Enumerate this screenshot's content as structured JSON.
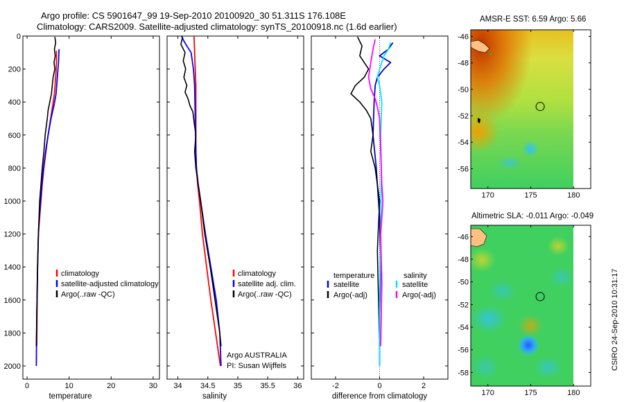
{
  "figure": {
    "title_line1": "Argo profile: CS 5901647_99 19-Sep-2010 20100920_30 51.311S 176.108E",
    "title_line2": "Climatology: CARS2009. Satellite-adjusted climatology: synTS_20100918.nc (1.6d earlier)",
    "stamp": "CSIRO 24-Sep-2010 10:31:17"
  },
  "chart_data": [
    {
      "id": "temperature",
      "type": "line",
      "xlabel": "temperature",
      "ylabel": "",
      "xlim": [
        -1,
        31.5
      ],
      "ylim": [
        2080,
        0
      ],
      "y_reversed": true,
      "xticks": [
        0,
        10,
        20,
        30
      ],
      "yticks": [
        0,
        200,
        400,
        600,
        800,
        1000,
        1200,
        1400,
        1600,
        1800,
        2000
      ],
      "series": [
        {
          "name": "climatology",
          "color": "#ff0000",
          "x": [
            7.0,
            7.0,
            6.8,
            6.5,
            6.1,
            5.6,
            5.0,
            4.5,
            4.0,
            3.6,
            3.3,
            3.0,
            2.7,
            2.5,
            2.4,
            2.3
          ],
          "y": [
            90,
            150,
            250,
            350,
            420,
            500,
            600,
            700,
            800,
            900,
            1000,
            1100,
            1200,
            1400,
            1600,
            1880
          ]
        },
        {
          "name": "satellite-adjusted climatology",
          "color": "#0000ff",
          "x": [
            7.6,
            7.5,
            7.2,
            6.9,
            6.4,
            5.7,
            5.0,
            4.4,
            3.9,
            3.5,
            3.2,
            2.9,
            2.7,
            2.5,
            2.3,
            2.2
          ],
          "y": [
            80,
            150,
            250,
            350,
            420,
            500,
            600,
            700,
            800,
            900,
            1000,
            1100,
            1200,
            1400,
            1700,
            2000
          ]
        },
        {
          "name": "Argo(..raw -QC)",
          "color": "#000000",
          "x": [
            6.6,
            6.8,
            6.5,
            6.7,
            6.4,
            6.6,
            6.2,
            6.0,
            5.8,
            5.4,
            5.0,
            4.8,
            4.3,
            4.0,
            3.6,
            3.3,
            3.0,
            2.7,
            2.5,
            2.3,
            2.2
          ],
          "y": [
            5,
            40,
            80,
            120,
            160,
            200,
            250,
            300,
            350,
            400,
            450,
            500,
            600,
            700,
            800,
            900,
            1000,
            1200,
            1400,
            1700,
            1880
          ]
        }
      ]
    },
    {
      "id": "salinity",
      "type": "line",
      "xlabel": "salinity",
      "ylabel": "",
      "xlim": [
        33.82,
        36.1
      ],
      "ylim": [
        2080,
        0
      ],
      "y_reversed": true,
      "xticks": [
        34,
        34.5,
        35,
        35.5,
        36
      ],
      "xticklabels": [
        "34",
        "34.5",
        "35",
        "35.5",
        "36"
      ],
      "yticks": [
        0,
        200,
        400,
        600,
        800,
        1000,
        1200,
        1400,
        1600,
        1800,
        2000
      ],
      "series": [
        {
          "name": "climatology",
          "color": "#ff0000",
          "x": [
            34.27,
            34.28,
            34.29,
            34.3,
            34.3,
            34.3,
            34.31,
            34.33,
            34.36,
            34.41,
            34.48,
            34.55,
            34.63,
            34.67,
            34.71
          ],
          "y": [
            0,
            100,
            200,
            300,
            500,
            700,
            800,
            900,
            1000,
            1200,
            1400,
            1600,
            1800,
            1900,
            2000
          ]
        },
        {
          "name": "satellite adj. clim.",
          "color": "#0000ff",
          "x": [
            34.06,
            34.1,
            34.15,
            34.22,
            34.26,
            34.28,
            34.29,
            34.3,
            34.31,
            34.34,
            34.38,
            34.46,
            34.55,
            34.64,
            34.7,
            34.72
          ],
          "y": [
            0,
            30,
            60,
            100,
            200,
            300,
            500,
            700,
            800,
            900,
            1000,
            1200,
            1400,
            1600,
            1800,
            2000
          ]
        },
        {
          "name": "Argo(..raw -QC)",
          "color": "#000000",
          "x": [
            34.08,
            34.05,
            34.12,
            34.09,
            34.13,
            34.1,
            34.15,
            34.12,
            34.17,
            34.2,
            34.25,
            34.27,
            34.3,
            34.28,
            34.3,
            34.34,
            34.38,
            34.45,
            34.54,
            34.62,
            34.7,
            34.72
          ],
          "y": [
            5,
            50,
            100,
            150,
            200,
            250,
            300,
            340,
            380,
            420,
            460,
            520,
            600,
            700,
            800,
            900,
            1000,
            1200,
            1400,
            1600,
            1800,
            1880
          ]
        }
      ]
    },
    {
      "id": "difference",
      "type": "line",
      "xlabel": "difference from climatology",
      "ylabel": "",
      "xlim": [
        -3.1,
        3.1
      ],
      "ylim": [
        2080,
        0
      ],
      "y_reversed": true,
      "xticks": [
        -2,
        0,
        2
      ],
      "yticks": [
        0,
        200,
        400,
        600,
        800,
        1000,
        1200,
        1400,
        1600,
        1800,
        2000
      ],
      "legend_headers": [
        "temperature",
        "salinity"
      ],
      "series": [
        {
          "name": "satellite",
          "group": "temperature",
          "color": "#0000cc",
          "x": [
            0.6,
            0.4,
            0.0,
            0.5,
            0.2,
            -0.1,
            -0.2,
            -0.25,
            -0.3,
            -0.15,
            0.0,
            0.05,
            0.0,
            0.0
          ],
          "y": [
            40,
            80,
            120,
            160,
            200,
            250,
            300,
            400,
            600,
            800,
            1100,
            1400,
            1700,
            2000
          ]
        },
        {
          "name": "Argo(-adj)",
          "group": "temperature",
          "color": "#000000",
          "x": [
            -1.0,
            -0.8,
            -0.9,
            -0.5,
            -0.7,
            -1.1,
            -1.3,
            -0.9,
            -0.6,
            -0.4,
            -0.3,
            -0.4,
            -0.2,
            -0.1,
            0.0,
            -0.1,
            0.0
          ],
          "y": [
            5,
            60,
            120,
            200,
            250,
            300,
            350,
            400,
            450,
            500,
            600,
            700,
            800,
            900,
            1000,
            1300,
            1880
          ]
        },
        {
          "name": "satellite",
          "group": "salinity",
          "color": "#00e5ff",
          "x": [
            0.5,
            0.4,
            0.2,
            0.0,
            -0.1,
            0.0,
            0.1,
            0.05,
            0.08,
            0.05,
            0.0,
            0.0
          ],
          "y": [
            40,
            80,
            120,
            200,
            250,
            300,
            400,
            600,
            800,
            1200,
            1600,
            2000
          ]
        },
        {
          "name": "Argo(-adj)",
          "group": "salinity",
          "color": "#ff00ff",
          "x": [
            -0.2,
            -0.3,
            -0.4,
            -0.5,
            -0.4,
            -0.2,
            -0.1,
            0.0,
            0.05,
            0.1,
            0.15,
            0.05,
            0.1,
            0.05
          ],
          "y": [
            20,
            80,
            160,
            250,
            320,
            380,
            430,
            500,
            700,
            900,
            1000,
            1200,
            1500,
            1880
          ]
        }
      ]
    },
    {
      "id": "map-sst",
      "type": "heatmap",
      "title": "AMSR-E SST: 6.59 Argo: 5.66",
      "xlim": [
        168,
        182
      ],
      "ylim": [
        -57.5,
        -45.5
      ],
      "xticks": [
        170,
        175,
        180
      ],
      "yticks": [
        -46,
        -48,
        -50,
        -52,
        -54,
        -56
      ],
      "profile_marker": {
        "lon": 176.1,
        "lat": -51.3
      }
    },
    {
      "id": "map-sla",
      "type": "heatmap",
      "title": "Altimetric SLA: -0.011 Argo: -0.049",
      "xlim": [
        168,
        182
      ],
      "ylim": [
        -59.2,
        -45
      ],
      "xticks": [
        170,
        175,
        180
      ],
      "yticks": [
        -46,
        -48,
        -50,
        -52,
        -54,
        -56,
        -58
      ],
      "profile_marker": {
        "lon": 176.1,
        "lat": -51.3
      }
    }
  ],
  "annotation": {
    "line1": "Argo AUSTRALIA",
    "line2": "PI: Susan Wijffels"
  }
}
